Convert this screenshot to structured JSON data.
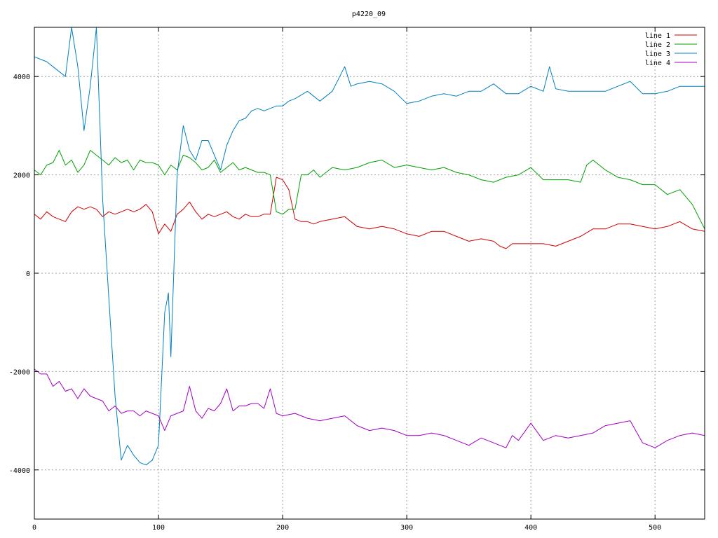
{
  "chart_data": {
    "type": "line",
    "title": "p4220_09",
    "xlabel": "",
    "ylabel": "",
    "xlim": [
      0,
      540
    ],
    "ylim": [
      -5000,
      5000
    ],
    "x_ticks": [
      0,
      100,
      200,
      300,
      400,
      500
    ],
    "y_ticks": [
      -4000,
      -2000,
      0,
      2000,
      4000
    ],
    "grid": true,
    "legend_position": "top-right",
    "series": [
      {
        "name": "line 1",
        "color": "#d00000",
        "x": [
          0,
          5,
          10,
          15,
          20,
          25,
          30,
          35,
          40,
          45,
          50,
          55,
          60,
          65,
          70,
          75,
          80,
          85,
          90,
          95,
          100,
          105,
          110,
          115,
          120,
          125,
          130,
          135,
          140,
          145,
          150,
          155,
          160,
          165,
          170,
          175,
          180,
          185,
          190,
          195,
          200,
          205,
          210,
          215,
          220,
          225,
          230,
          240,
          250,
          260,
          270,
          280,
          290,
          300,
          310,
          320,
          330,
          340,
          350,
          360,
          370,
          375,
          380,
          385,
          390,
          400,
          410,
          420,
          430,
          440,
          450,
          460,
          470,
          480,
          490,
          500,
          510,
          520,
          530,
          540
        ],
        "y": [
          1200,
          1100,
          1250,
          1150,
          1100,
          1050,
          1250,
          1350,
          1300,
          1350,
          1300,
          1150,
          1250,
          1200,
          1250,
          1300,
          1250,
          1300,
          1400,
          1250,
          800,
          1000,
          850,
          1200,
          1300,
          1450,
          1250,
          1100,
          1200,
          1150,
          1200,
          1250,
          1150,
          1100,
          1200,
          1150,
          1150,
          1200,
          1200,
          1950,
          1900,
          1700,
          1100,
          1050,
          1050,
          1000,
          1050,
          1100,
          1150,
          950,
          900,
          950,
          900,
          800,
          750,
          850,
          850,
          750,
          650,
          700,
          650,
          550,
          500,
          600,
          600,
          600,
          600,
          550,
          650,
          750,
          900,
          900,
          1000,
          1000,
          950,
          900,
          950,
          1050,
          900,
          850
        ]
      },
      {
        "name": "line 2",
        "color": "#00a000",
        "x": [
          0,
          5,
          10,
          15,
          20,
          25,
          30,
          35,
          40,
          45,
          50,
          55,
          60,
          65,
          70,
          75,
          80,
          85,
          90,
          95,
          100,
          105,
          110,
          115,
          120,
          125,
          130,
          135,
          140,
          145,
          150,
          155,
          160,
          165,
          170,
          175,
          180,
          185,
          190,
          195,
          200,
          205,
          210,
          215,
          220,
          225,
          230,
          240,
          250,
          260,
          270,
          280,
          290,
          300,
          310,
          320,
          330,
          340,
          350,
          360,
          370,
          380,
          390,
          400,
          410,
          420,
          430,
          440,
          445,
          450,
          460,
          470,
          480,
          490,
          500,
          510,
          520,
          530,
          540
        ],
        "y": [
          2100,
          2000,
          2200,
          2250,
          2500,
          2200,
          2300,
          2050,
          2200,
          2500,
          2400,
          2300,
          2200,
          2350,
          2250,
          2300,
          2100,
          2300,
          2250,
          2250,
          2200,
          2000,
          2200,
          2100,
          2400,
          2350,
          2250,
          2100,
          2150,
          2300,
          2050,
          2150,
          2250,
          2100,
          2150,
          2100,
          2050,
          2050,
          2000,
          1250,
          1200,
          1300,
          1300,
          2000,
          2000,
          2100,
          1950,
          2150,
          2100,
          2150,
          2250,
          2300,
          2150,
          2200,
          2150,
          2100,
          2150,
          2050,
          2000,
          1900,
          1850,
          1950,
          2000,
          2150,
          1900,
          1900,
          1900,
          1850,
          2200,
          2300,
          2100,
          1950,
          1900,
          1800,
          1800,
          1600,
          1700,
          1400,
          900
        ]
      },
      {
        "name": "line 3",
        "color": "#0080c0",
        "x": [
          0,
          5,
          10,
          15,
          20,
          25,
          30,
          35,
          40,
          45,
          50,
          55,
          60,
          65,
          70,
          75,
          80,
          85,
          90,
          95,
          100,
          105,
          108,
          110,
          115,
          120,
          125,
          130,
          135,
          140,
          145,
          150,
          155,
          160,
          165,
          170,
          175,
          180,
          185,
          190,
          195,
          200,
          205,
          210,
          220,
          230,
          240,
          250,
          255,
          260,
          270,
          280,
          290,
          300,
          310,
          320,
          330,
          340,
          350,
          360,
          370,
          380,
          390,
          400,
          410,
          415,
          420,
          430,
          440,
          450,
          460,
          470,
          480,
          490,
          500,
          510,
          520,
          530,
          540
        ],
        "y": [
          4400,
          4350,
          4300,
          4200,
          4100,
          4000,
          5000,
          4200,
          2900,
          3800,
          5000,
          1500,
          -500,
          -2500,
          -3800,
          -3500,
          -3700,
          -3850,
          -3900,
          -3800,
          -3500,
          -800,
          -400,
          -1700,
          2000,
          3000,
          2500,
          2300,
          2700,
          2700,
          2400,
          2100,
          2600,
          2900,
          3100,
          3150,
          3300,
          3350,
          3300,
          3350,
          3400,
          3400,
          3500,
          3550,
          3700,
          3500,
          3700,
          4200,
          3800,
          3850,
          3900,
          3850,
          3700,
          3450,
          3500,
          3600,
          3650,
          3600,
          3700,
          3700,
          3850,
          3650,
          3650,
          3800,
          3700,
          4200,
          3750,
          3700,
          3700,
          3700,
          3700,
          3800,
          3900,
          3650,
          3650,
          3700,
          3800,
          3800,
          3800
        ]
      },
      {
        "name": "line 4",
        "color": "#a000c0",
        "x": [
          0,
          5,
          10,
          15,
          20,
          25,
          30,
          35,
          40,
          45,
          50,
          55,
          60,
          65,
          70,
          75,
          80,
          85,
          90,
          95,
          100,
          105,
          110,
          115,
          120,
          125,
          130,
          135,
          140,
          145,
          150,
          155,
          160,
          165,
          170,
          175,
          180,
          185,
          190,
          195,
          200,
          210,
          220,
          230,
          240,
          250,
          260,
          270,
          280,
          290,
          300,
          310,
          320,
          330,
          340,
          350,
          360,
          370,
          380,
          385,
          390,
          400,
          410,
          420,
          430,
          440,
          450,
          460,
          470,
          480,
          490,
          500,
          510,
          520,
          530,
          540
        ],
        "y": [
          -1950,
          -2050,
          -2050,
          -2300,
          -2200,
          -2400,
          -2350,
          -2550,
          -2350,
          -2500,
          -2550,
          -2600,
          -2800,
          -2700,
          -2850,
          -2800,
          -2800,
          -2900,
          -2800,
          -2850,
          -2900,
          -3200,
          -2900,
          -2850,
          -2800,
          -2300,
          -2800,
          -2950,
          -2750,
          -2800,
          -2650,
          -2350,
          -2800,
          -2700,
          -2700,
          -2650,
          -2650,
          -2750,
          -2350,
          -2850,
          -2900,
          -2850,
          -2950,
          -3000,
          -2950,
          -2900,
          -3100,
          -3200,
          -3150,
          -3200,
          -3300,
          -3300,
          -3250,
          -3300,
          -3400,
          -3500,
          -3350,
          -3450,
          -3550,
          -3300,
          -3400,
          -3050,
          -3400,
          -3300,
          -3350,
          -3300,
          -3250,
          -3100,
          -3050,
          -3000,
          -3450,
          -3550,
          -3400,
          -3300,
          -3250,
          -3300
        ]
      }
    ]
  }
}
